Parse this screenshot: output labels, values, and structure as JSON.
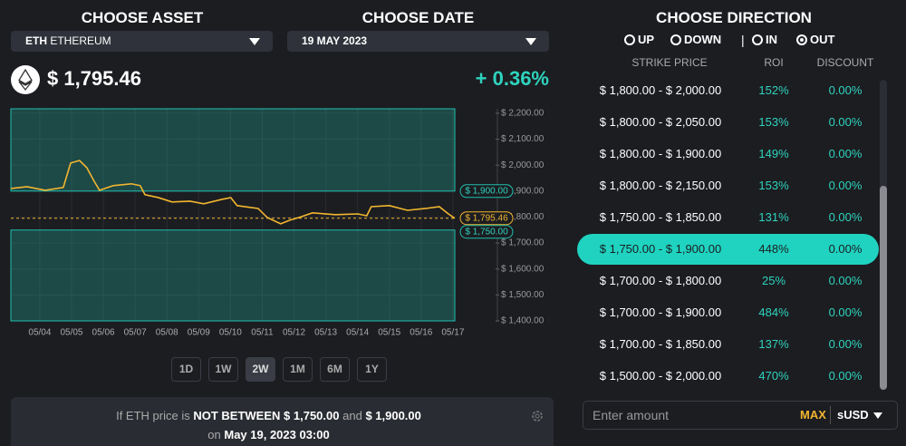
{
  "asset": {
    "title": "CHOOSE ASSET",
    "symbol": "ETH",
    "name": "ETHEREUM"
  },
  "date": {
    "title": "CHOOSE DATE",
    "value": "19 MAY 2023"
  },
  "header": {
    "price": "$ 1,795.46",
    "change": "+ 0.36%"
  },
  "chart_data": {
    "type": "line",
    "x": [
      3.09,
      3.6,
      4.17,
      4.74,
      4.97,
      5.25,
      5.48,
      5.71,
      5.88,
      6.31,
      6.88,
      7.16,
      7.31,
      7.73,
      8.16,
      8.73,
      9.16,
      9.73,
      10.01,
      10.21,
      10.87,
      11.16,
      11.58,
      11.87,
      12.15,
      12.58,
      13.29,
      14.01,
      14.29,
      14.43,
      15.0,
      15.57,
      16.14,
      16.57,
      16.86,
      17.06
    ],
    "series": [
      {
        "color": "#f2b630",
        "values": [
          1910,
          1917,
          1903,
          1914,
          2008,
          2018,
          1990,
          1938,
          1903,
          1921,
          1928,
          1921,
          1886,
          1875,
          1858,
          1861,
          1851,
          1868,
          1875,
          1844,
          1833,
          1798,
          1774,
          1788,
          1798,
          1816,
          1809,
          1812,
          1805,
          1840,
          1844,
          1826,
          1833,
          1840,
          1812,
          1795.46
        ]
      }
    ],
    "xlim": [
      3.09,
      17.06
    ],
    "xticks": [
      {
        "value": 4,
        "label": "05/04"
      },
      {
        "value": 5,
        "label": "05/05"
      },
      {
        "value": 6,
        "label": "05/06"
      },
      {
        "value": 7,
        "label": "05/07"
      },
      {
        "value": 8,
        "label": "05/08"
      },
      {
        "value": 9,
        "label": "05/09"
      },
      {
        "value": 10,
        "label": "05/10"
      },
      {
        "value": 11,
        "label": "05/11"
      },
      {
        "value": 12,
        "label": "05/12"
      },
      {
        "value": 13,
        "label": "05/13"
      },
      {
        "value": 14,
        "label": "05/14"
      },
      {
        "value": 15,
        "label": "05/15"
      },
      {
        "value": 16,
        "label": "05/16"
      },
      {
        "value": 17,
        "label": "05/17"
      }
    ],
    "ylim": [
      1400,
      2217
    ],
    "yticks": [
      {
        "value": 1400,
        "label": "$ 1,400.00"
      },
      {
        "value": 1500,
        "label": "$ 1,500.00"
      },
      {
        "value": 1600,
        "label": "$ 1,600.00"
      },
      {
        "value": 1700,
        "label": "$ 1,700.00"
      },
      {
        "value": 1800,
        "label": "$ 1,800.00"
      },
      {
        "value": 1900,
        "label": "$ 1,900.00"
      },
      {
        "value": 2000,
        "label": "$ 2,000.00"
      },
      {
        "value": 2100,
        "label": "$ 2,100.00"
      },
      {
        "value": 2200,
        "label": "$ 2,200.00"
      }
    ],
    "range_high": {
      "value": 1900,
      "label": "$ 1,900.00"
    },
    "range_low": {
      "value": 1750,
      "label": "$ 1,750.00"
    },
    "current": {
      "value": 1795.46,
      "label": "$ 1,795.46"
    },
    "grid": true
  },
  "timeframes": {
    "options": [
      "1D",
      "1W",
      "2W",
      "1M",
      "6M",
      "1Y"
    ],
    "active": 2
  },
  "summary": {
    "prefix": "If ETH price is",
    "condition": "NOT BETWEEN",
    "low": "$ 1,750.00",
    "joiner": "and",
    "high": "$ 1,900.00",
    "on": "on",
    "date": "May 19, 2023 03:00"
  },
  "direction": {
    "title": "CHOOSE DIRECTION",
    "options": [
      "UP",
      "DOWN",
      "IN",
      "OUT"
    ],
    "selected": 3
  },
  "table": {
    "headers": [
      "STRIKE PRICE",
      "ROI",
      "DISCOUNT"
    ],
    "selected": 5,
    "rows": [
      [
        "$ 1,800.00 - $ 2,000.00",
        "152%",
        "0.00%"
      ],
      [
        "$ 1,800.00 - $ 2,050.00",
        "153%",
        "0.00%"
      ],
      [
        "$ 1,800.00 - $ 1,900.00",
        "149%",
        "0.00%"
      ],
      [
        "$ 1,800.00 - $ 2,150.00",
        "153%",
        "0.00%"
      ],
      [
        "$ 1,750.00 - $ 1,850.00",
        "131%",
        "0.00%"
      ],
      [
        "$ 1,750.00 - $ 1,900.00",
        "448%",
        "0.00%"
      ],
      [
        "$ 1,700.00 - $ 1,800.00",
        "25%",
        "0.00%"
      ],
      [
        "$ 1,700.00 - $ 1,900.00",
        "484%",
        "0.00%"
      ],
      [
        "$ 1,700.00 - $ 1,850.00",
        "137%",
        "0.00%"
      ],
      [
        "$ 1,500.00 - $ 2,000.00",
        "470%",
        "0.00%"
      ]
    ]
  },
  "amount": {
    "placeholder": "Enter amount",
    "max": "MAX",
    "currency": "sUSD"
  }
}
